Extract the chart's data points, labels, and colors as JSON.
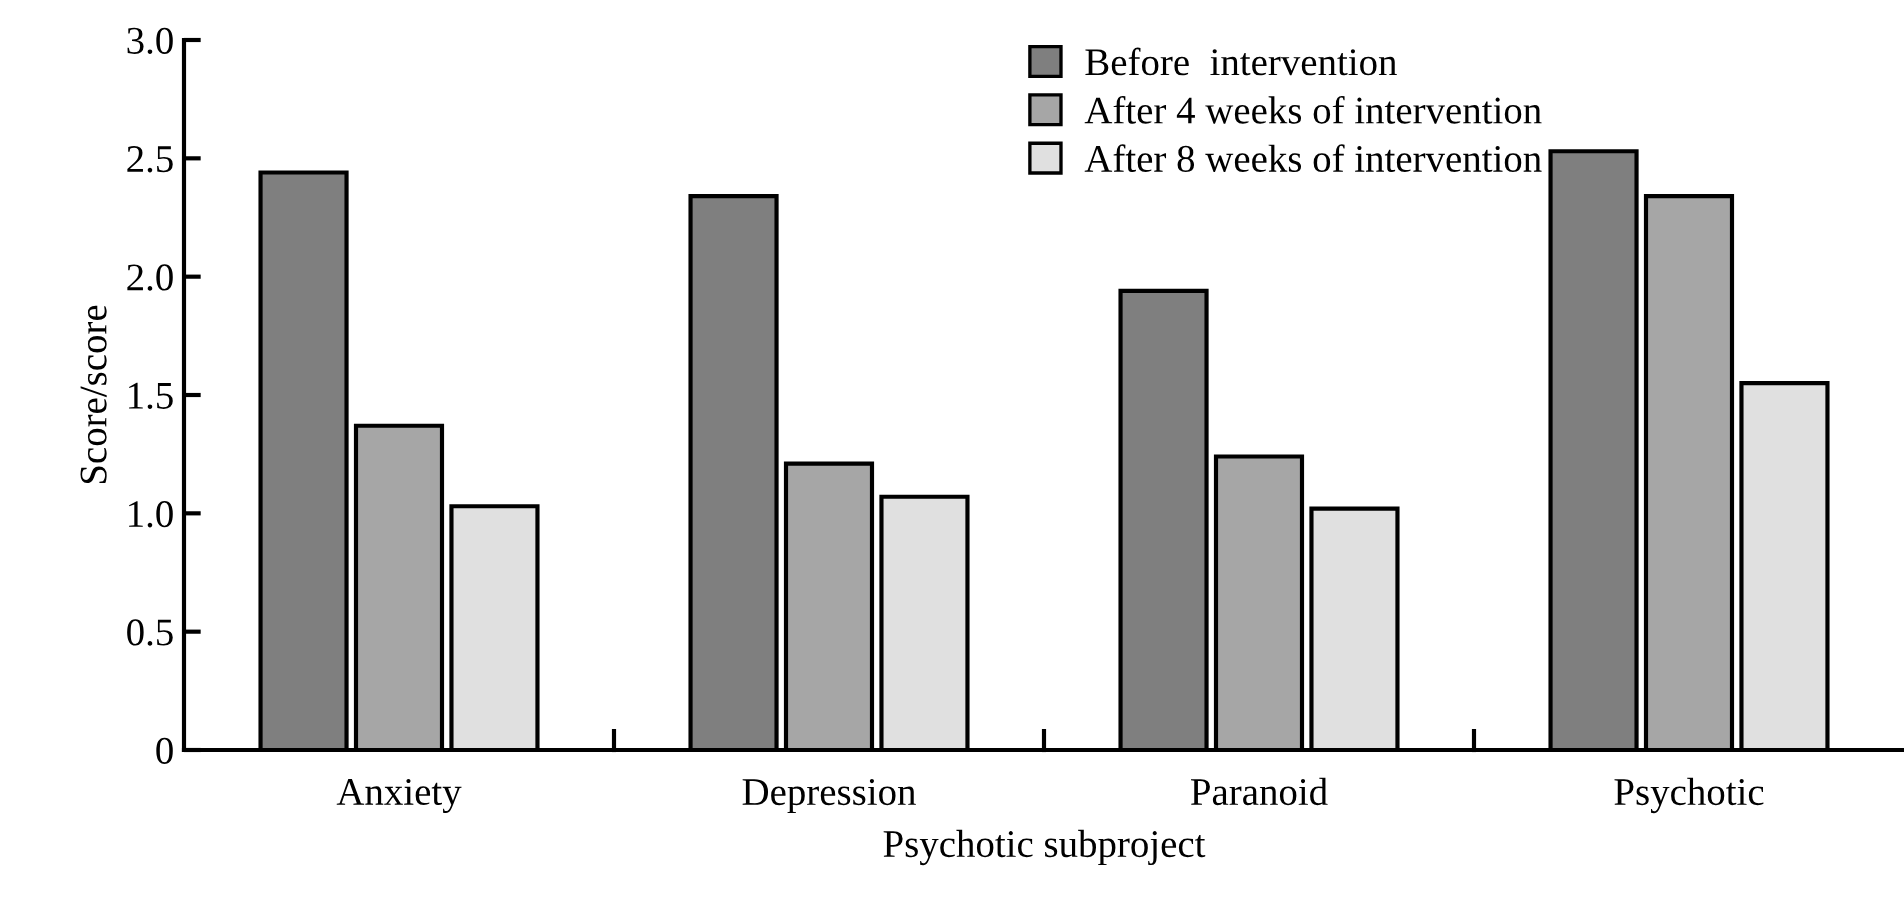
{
  "chart_data": {
    "type": "bar",
    "xlabel": "Psychotic subproject",
    "ylabel": "Score/score",
    "categories": [
      "Anxiety",
      "Depression",
      "Paranoid",
      "Psychotic"
    ],
    "series": [
      {
        "name": "Before  intervention",
        "color": "#7f7f7f",
        "values": [
          2.44,
          2.34,
          1.94,
          2.53
        ]
      },
      {
        "name": "After 4 weeks of intervention",
        "color": "#a6a6a6",
        "values": [
          1.37,
          1.21,
          1.24,
          2.34
        ]
      },
      {
        "name": "After 8 weeks of intervention",
        "color": "#e0e0e0",
        "values": [
          1.03,
          1.07,
          1.02,
          1.55
        ]
      }
    ],
    "ylim": [
      0,
      3.0
    ],
    "yticks": [
      {
        "value": 0,
        "label": "0"
      },
      {
        "value": 0.5,
        "label": "0.5"
      },
      {
        "value": 1.0,
        "label": "1.0"
      },
      {
        "value": 1.5,
        "label": "1.5"
      },
      {
        "value": 2.0,
        "label": "2.0"
      },
      {
        "value": 2.5,
        "label": "2.5"
      },
      {
        "value": 3.0,
        "label": "3.0"
      }
    ],
    "legend": "top right",
    "grid": false
  }
}
